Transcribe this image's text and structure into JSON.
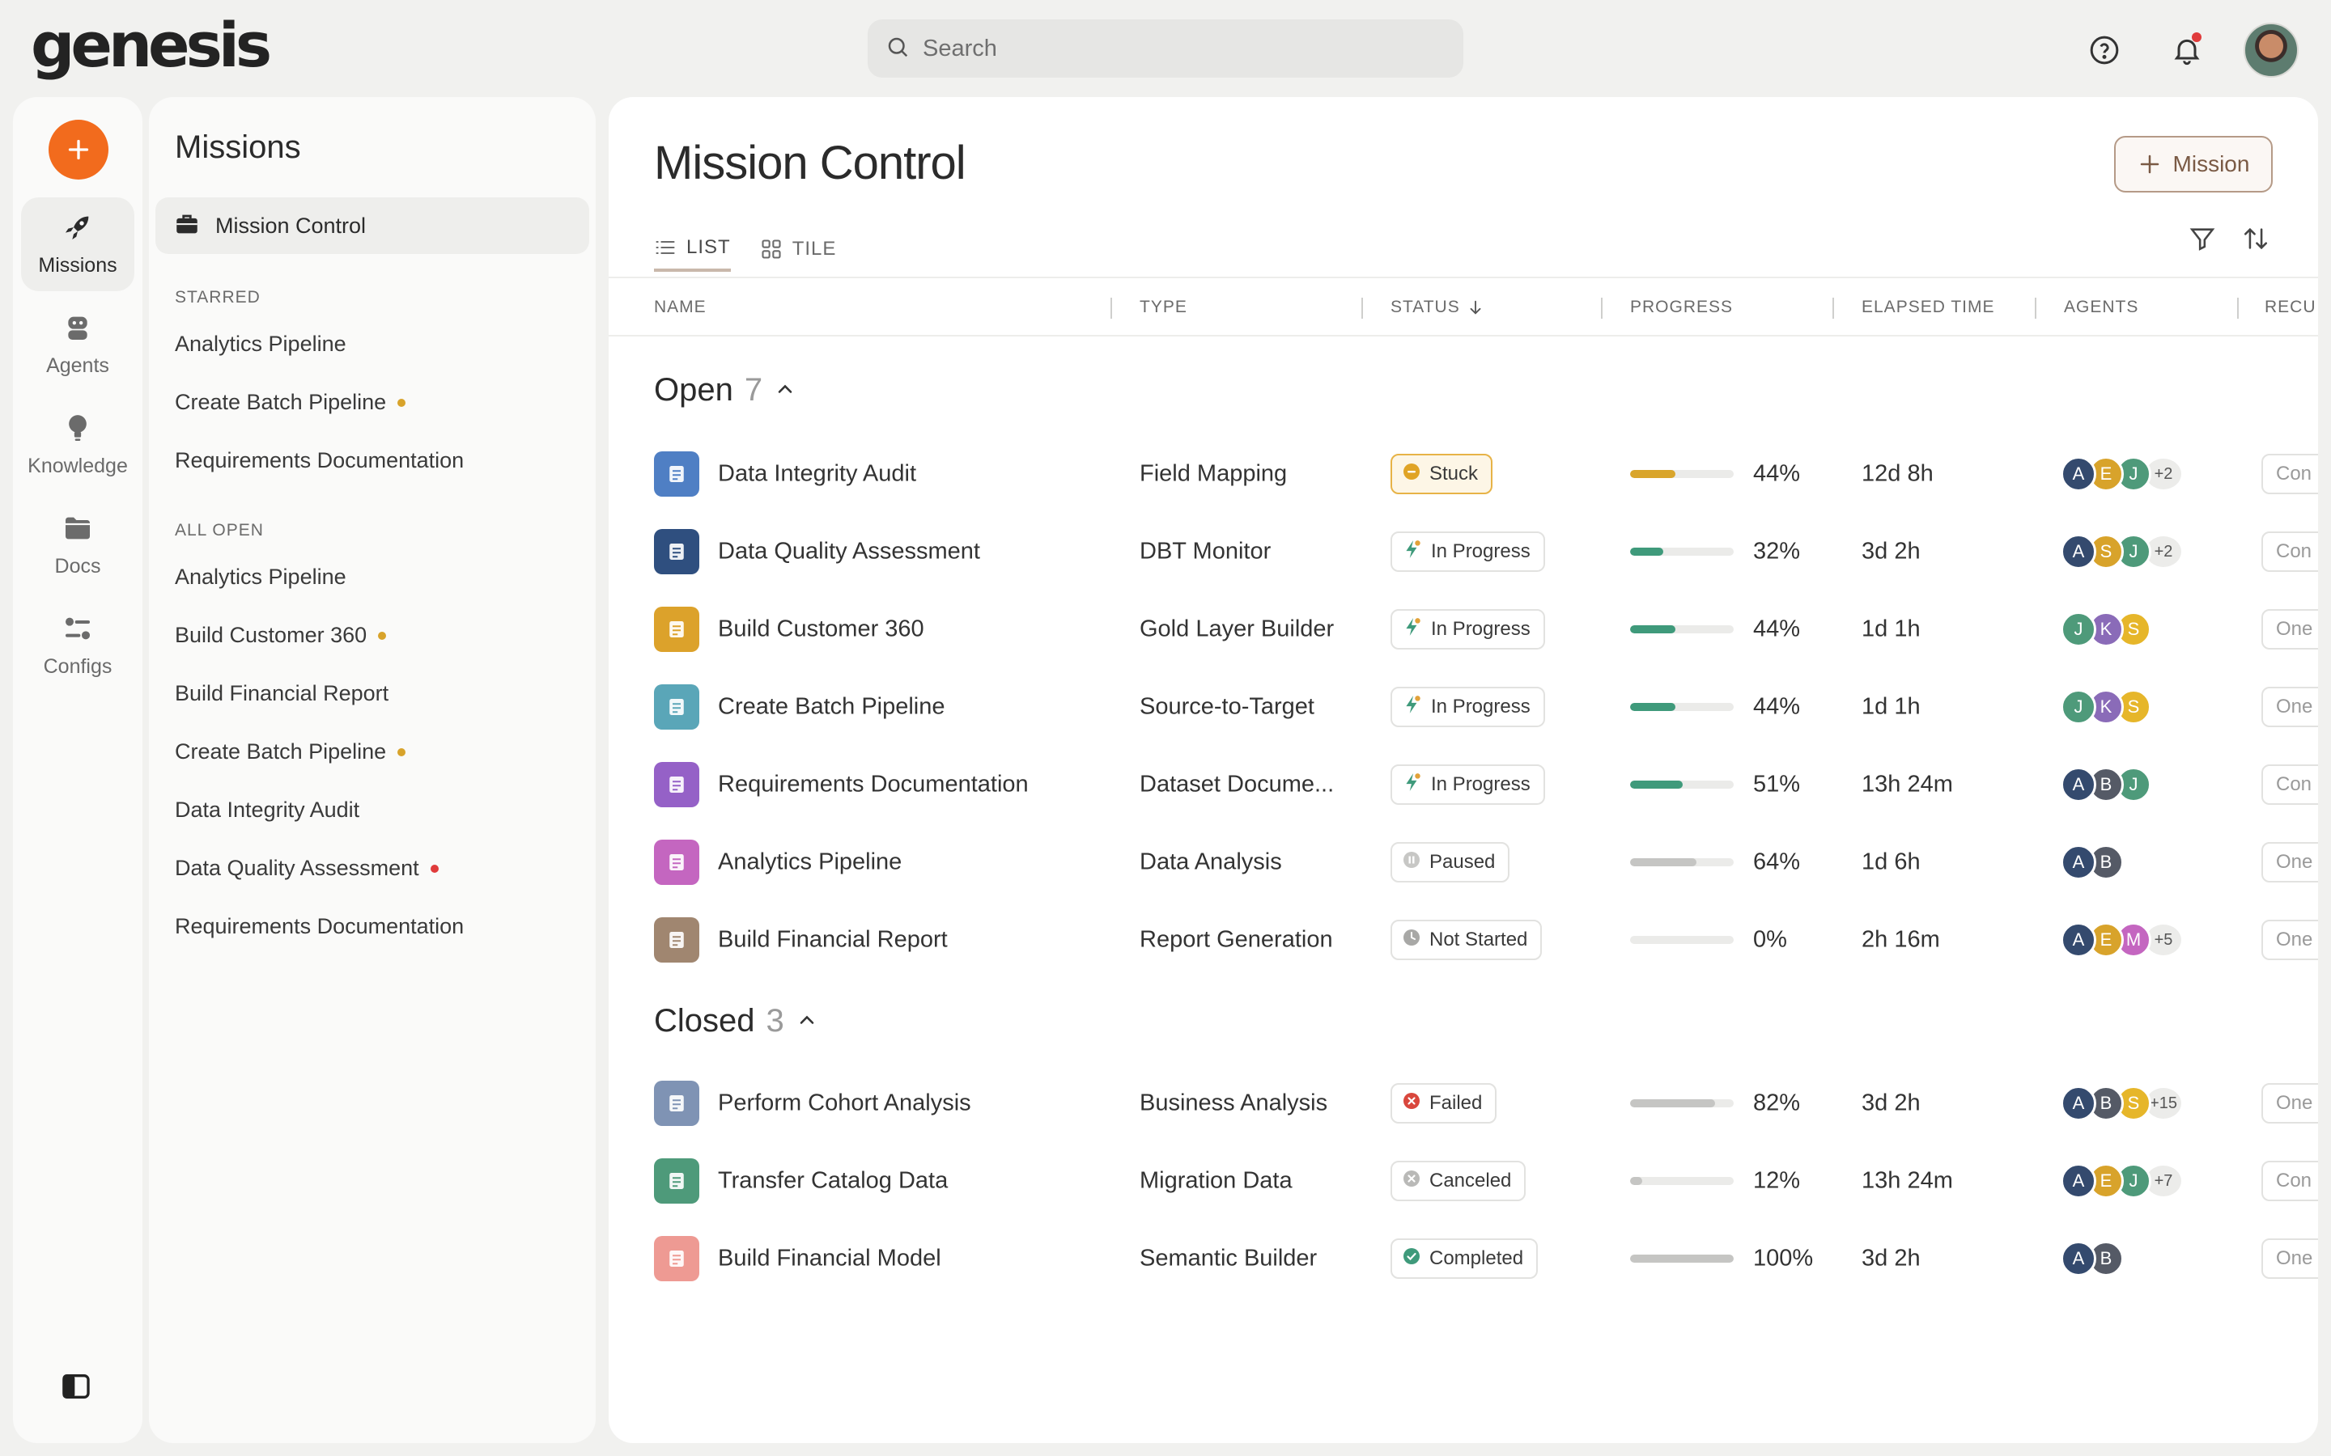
{
  "brand": {
    "logo_text": "genesis"
  },
  "search": {
    "placeholder": "Search"
  },
  "rail": {
    "items": [
      {
        "label": "Missions",
        "icon": "rocket-icon",
        "active": true
      },
      {
        "label": "Agents",
        "icon": "robot-icon"
      },
      {
        "label": "Knowledge",
        "icon": "lightbulb-icon"
      },
      {
        "label": "Docs",
        "icon": "folder-icon"
      },
      {
        "label": "Configs",
        "icon": "sliders-icon"
      }
    ]
  },
  "side": {
    "title": "Missions",
    "active_item": "Mission Control",
    "starred_label": "STARRED",
    "starred": [
      {
        "label": "Analytics Pipeline",
        "dot": ""
      },
      {
        "label": "Create Batch Pipeline",
        "dot": "#d8a32b"
      },
      {
        "label": "Requirements Documentation",
        "dot": ""
      }
    ],
    "all_open_label": "ALL OPEN",
    "all_open": [
      {
        "label": "Analytics Pipeline",
        "dot": ""
      },
      {
        "label": "Build Customer 360",
        "dot": "#d8a32b"
      },
      {
        "label": "Build Financial Report",
        "dot": ""
      },
      {
        "label": "Create Batch Pipeline",
        "dot": "#d8a32b"
      },
      {
        "label": "Data Integrity Audit",
        "dot": ""
      },
      {
        "label": "Data Quality Assessment",
        "dot": "#e03b3b"
      },
      {
        "label": "Requirements Documentation",
        "dot": ""
      }
    ]
  },
  "main": {
    "title": "Mission Control",
    "add_button": "Mission",
    "tabs": [
      {
        "label": "LIST",
        "active": true
      },
      {
        "label": "TILE"
      }
    ],
    "columns": [
      "NAME",
      "TYPE",
      "STATUS",
      "PROGRESS",
      "ELAPSED TIME",
      "AGENTS",
      "RECU"
    ],
    "groups": [
      {
        "label": "Open",
        "count": "7",
        "rows": [
          {
            "name": "Data Integrity Audit",
            "icon_color": "#4f7fc4",
            "type": "Field Mapping",
            "status": "Stuck",
            "status_kind": "stuck",
            "progress": 0.44,
            "progress_color": "#d9a52c",
            "pct": "44%",
            "elapsed": "12d 8h",
            "agents": [
              {
                "l": "A",
                "c": "#344a6e"
              },
              {
                "l": "E",
                "c": "#d8a32b"
              },
              {
                "l": "J",
                "c": "#4e9a7a"
              }
            ],
            "more": "+2",
            "recur": "Con"
          },
          {
            "name": "Data Quality Assessment",
            "icon_color": "#2f4f7f",
            "type": "DBT Monitor",
            "status": "In Progress",
            "status_kind": "progress",
            "progress": 0.32,
            "progress_color": "#3f9a7b",
            "pct": "32%",
            "elapsed": "3d 2h",
            "agents": [
              {
                "l": "A",
                "c": "#344a6e"
              },
              {
                "l": "S",
                "c": "#d8a32b"
              },
              {
                "l": "J",
                "c": "#4e9a7a"
              }
            ],
            "more": "+2",
            "recur": "Con"
          },
          {
            "name": "Build Customer 360",
            "icon_color": "#dca22b",
            "type": "Gold Layer Builder",
            "status": "In Progress",
            "status_kind": "progress",
            "progress": 0.44,
            "progress_color": "#3f9a7b",
            "pct": "44%",
            "elapsed": "1d 1h",
            "agents": [
              {
                "l": "J",
                "c": "#4e9a7a"
              },
              {
                "l": "K",
                "c": "#8a6bb8"
              },
              {
                "l": "S",
                "c": "#e6b62a"
              }
            ],
            "more": "",
            "recur": "One"
          },
          {
            "name": "Create Batch Pipeline",
            "icon_color": "#5aa6b8",
            "type": "Source-to-Target",
            "status": "In Progress",
            "status_kind": "progress",
            "progress": 0.44,
            "progress_color": "#3f9a7b",
            "pct": "44%",
            "elapsed": "1d 1h",
            "agents": [
              {
                "l": "J",
                "c": "#4e9a7a"
              },
              {
                "l": "K",
                "c": "#8a6bb8"
              },
              {
                "l": "S",
                "c": "#e6b62a"
              }
            ],
            "more": "",
            "recur": "One"
          },
          {
            "name": "Requirements Documentation",
            "icon_color": "#9561c7",
            "type": "Dataset Docume...",
            "status": "In Progress",
            "status_kind": "progress",
            "progress": 0.51,
            "progress_color": "#3f9a7b",
            "pct": "51%",
            "elapsed": "13h 24m",
            "agents": [
              {
                "l": "A",
                "c": "#344a6e"
              },
              {
                "l": "B",
                "c": "#555a66"
              },
              {
                "l": "J",
                "c": "#4e9a7a"
              }
            ],
            "more": "",
            "recur": "Con"
          },
          {
            "name": "Analytics Pipeline",
            "icon_color": "#c466c0",
            "type": "Data Analysis",
            "status": "Paused",
            "status_kind": "paused",
            "progress": 0.64,
            "progress_color": "#c5c5c3",
            "pct": "64%",
            "elapsed": "1d 6h",
            "agents": [
              {
                "l": "A",
                "c": "#344a6e"
              },
              {
                "l": "B",
                "c": "#555a66"
              }
            ],
            "more": "",
            "recur": "One"
          },
          {
            "name": "Build Financial Report",
            "icon_color": "#a08670",
            "type": "Report Generation",
            "status": "Not Started",
            "status_kind": "notstarted",
            "progress": 0.0,
            "progress_color": "#c5c5c3",
            "pct": "0%",
            "elapsed": "2h 16m",
            "agents": [
              {
                "l": "A",
                "c": "#344a6e"
              },
              {
                "l": "E",
                "c": "#d8a32b"
              },
              {
                "l": "M",
                "c": "#c466c0"
              }
            ],
            "more": "+5",
            "recur": "One"
          }
        ]
      },
      {
        "label": "Closed",
        "count": "3",
        "rows": [
          {
            "name": "Perform Cohort Analysis",
            "icon_color": "#7f93b4",
            "type": "Business Analysis",
            "status": "Failed",
            "status_kind": "failed",
            "progress": 0.82,
            "progress_color": "#c5c5c3",
            "pct": "82%",
            "elapsed": "3d 2h",
            "agents": [
              {
                "l": "A",
                "c": "#344a6e"
              },
              {
                "l": "B",
                "c": "#555a66"
              },
              {
                "l": "S",
                "c": "#e6b62a"
              }
            ],
            "more": "+15",
            "recur": "One"
          },
          {
            "name": "Transfer Catalog Data",
            "icon_color": "#4e9a7a",
            "type": "Migration Data",
            "status": "Canceled",
            "status_kind": "canceled",
            "progress": 0.12,
            "progress_color": "#c5c5c3",
            "pct": "12%",
            "elapsed": "13h 24m",
            "agents": [
              {
                "l": "A",
                "c": "#344a6e"
              },
              {
                "l": "E",
                "c": "#d8a32b"
              },
              {
                "l": "J",
                "c": "#4e9a7a"
              }
            ],
            "more": "+7",
            "recur": "Con"
          },
          {
            "name": "Build Financial Model",
            "icon_color": "#ee9a93",
            "type": "Semantic Builder",
            "status": "Completed",
            "status_kind": "completed",
            "progress": 1.0,
            "progress_color": "#c5c5c3",
            "pct": "100%",
            "elapsed": "3d 2h",
            "agents": [
              {
                "l": "A",
                "c": "#344a6e"
              },
              {
                "l": "B",
                "c": "#555a66"
              }
            ],
            "more": "",
            "recur": "One"
          }
        ]
      }
    ]
  }
}
